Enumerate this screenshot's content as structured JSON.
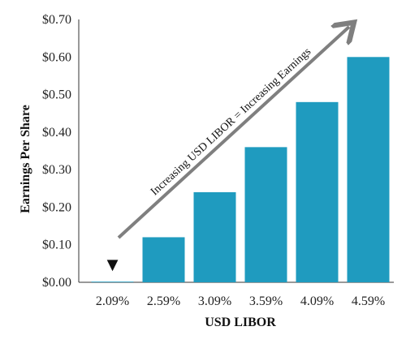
{
  "chart_data": {
    "type": "bar",
    "title": "",
    "xlabel": "USD LIBOR",
    "ylabel": "Earnings Per Share",
    "categories": [
      "2.09%",
      "2.59%",
      "3.09%",
      "3.59%",
      "4.09%",
      "4.59%"
    ],
    "values": [
      0.0,
      0.12,
      0.24,
      0.36,
      0.48,
      0.6
    ],
    "ylim": [
      0,
      0.7
    ],
    "yticks": [
      0.0,
      0.1,
      0.2,
      0.3,
      0.4,
      0.5,
      0.6,
      0.7
    ],
    "ytick_labels": [
      "$0.00",
      "$0.10",
      "$0.20",
      "$0.30",
      "$0.40",
      "$0.50",
      "$0.60",
      "$0.70"
    ],
    "grid": false,
    "bar_color": "#1f9bbf",
    "annotation": {
      "text": "Increasing USD LIBOR = Increasing Earnings",
      "arrow_color": "#7f7f7f"
    },
    "marker": {
      "symbol": "▼",
      "category": "2.09%"
    }
  }
}
